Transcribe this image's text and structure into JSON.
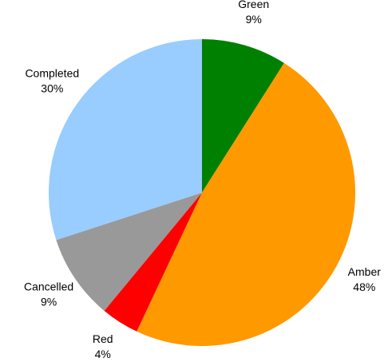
{
  "chart_data": {
    "type": "pie",
    "title": "",
    "start": "12 o'clock",
    "direction": "clockwise",
    "slices": [
      {
        "label": "Green",
        "percent_label": "9%",
        "value": 9,
        "color": "#008000"
      },
      {
        "label": "Amber",
        "percent_label": "48%",
        "value": 48,
        "color": "#ff9900"
      },
      {
        "label": "Red",
        "percent_label": "4%",
        "value": 4,
        "color": "#ff0000"
      },
      {
        "label": "Cancelled",
        "percent_label": "9%",
        "value": 9,
        "color": "#999999"
      },
      {
        "label": "Completed",
        "percent_label": "30%",
        "value": 30,
        "color": "#99ccff"
      }
    ]
  }
}
